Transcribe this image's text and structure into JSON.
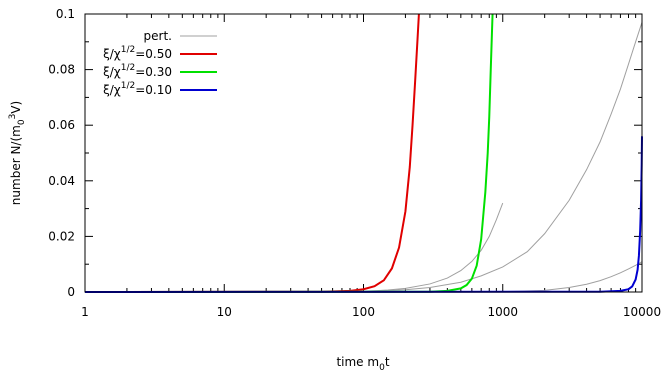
{
  "chart_data": {
    "type": "line",
    "xlabel": "time m₀t",
    "xlabel_parts": {
      "main": "time m",
      "sub": "0",
      "tail": "t"
    },
    "ylabel_parts": {
      "main": "number N/(m",
      "sub": "0",
      "sup": "3",
      "tail": "V)"
    },
    "x_scale": "log",
    "xlim": [
      1,
      10000
    ],
    "ylim": [
      0,
      0.1
    ],
    "x_ticks": [
      1,
      10,
      100,
      1000,
      10000
    ],
    "x_tick_labels": [
      "1",
      "10",
      "100",
      "1000",
      "10000"
    ],
    "y_ticks": [
      0,
      0.02,
      0.04,
      0.06,
      0.08,
      0.1
    ],
    "y_tick_labels": [
      "0",
      "0.02",
      "0.04",
      "0.06",
      "0.08",
      "0.1"
    ],
    "legend_position": "top-left",
    "series": [
      {
        "name": "pert.",
        "color": "#a0a0a0",
        "curves": [
          [
            [
              1,
              0
            ],
            [
              100,
              0.0002
            ],
            [
              200,
              0.0008
            ],
            [
              300,
              0.0016
            ],
            [
              500,
              0.0035
            ],
            [
              700,
              0.0058
            ],
            [
              1000,
              0.009
            ],
            [
              1500,
              0.0145
            ],
            [
              2000,
              0.021
            ],
            [
              3000,
              0.033
            ],
            [
              4000,
              0.044
            ],
            [
              5000,
              0.054
            ],
            [
              6000,
              0.064
            ],
            [
              7000,
              0.073
            ],
            [
              8000,
              0.082
            ],
            [
              9000,
              0.09
            ],
            [
              10000,
              0.097
            ]
          ],
          [
            [
              1,
              0
            ],
            [
              1000,
              0.0001
            ],
            [
              2000,
              0.0006
            ],
            [
              3000,
              0.0016
            ],
            [
              4000,
              0.0028
            ],
            [
              5000,
              0.0041
            ],
            [
              6000,
              0.0055
            ],
            [
              7000,
              0.0069
            ],
            [
              8000,
              0.0083
            ],
            [
              9000,
              0.0096
            ],
            [
              10000,
              0.0109
            ]
          ],
          [
            [
              1,
              0
            ],
            [
              50,
              0.0001
            ],
            [
              100,
              0.0003
            ],
            [
              150,
              0.0007
            ],
            [
              200,
              0.0013
            ],
            [
              300,
              0.0029
            ],
            [
              400,
              0.005
            ],
            [
              500,
              0.0077
            ],
            [
              600,
              0.011
            ],
            [
              700,
              0.015
            ],
            [
              800,
              0.02
            ],
            [
              900,
              0.026
            ],
            [
              1000,
              0.032
            ]
          ]
        ]
      },
      {
        "name": "ξ/χ^{1/2}=0.50",
        "label": {
          "main": "ξ/χ",
          "sup": "1/2",
          "tail": "=0.50"
        },
        "color": "#e00000",
        "points": [
          [
            1,
            0
          ],
          [
            50,
            0.0001
          ],
          [
            80,
            0.0004
          ],
          [
            100,
            0.001
          ],
          [
            120,
            0.0021
          ],
          [
            140,
            0.0042
          ],
          [
            160,
            0.0085
          ],
          [
            180,
            0.016
          ],
          [
            200,
            0.029
          ],
          [
            215,
            0.045
          ],
          [
            225,
            0.06
          ],
          [
            235,
            0.076
          ],
          [
            245,
            0.092
          ],
          [
            250,
            0.1
          ]
        ]
      },
      {
        "name": "ξ/χ^{1/2}=0.30",
        "label": {
          "main": "ξ/χ",
          "sup": "1/2",
          "tail": "=0.30"
        },
        "color": "#00e000",
        "points": [
          [
            1,
            0
          ],
          [
            300,
            0.0001
          ],
          [
            400,
            0.0004
          ],
          [
            500,
            0.0013
          ],
          [
            550,
            0.0025
          ],
          [
            600,
            0.0048
          ],
          [
            650,
            0.0095
          ],
          [
            700,
            0.019
          ],
          [
            750,
            0.036
          ],
          [
            780,
            0.05
          ],
          [
            800,
            0.063
          ],
          [
            820,
            0.08
          ],
          [
            835,
            0.092
          ],
          [
            845,
            0.1
          ]
        ]
      },
      {
        "name": "ξ/χ^{1/2}=0.10",
        "label": {
          "main": "ξ/χ",
          "sup": "1/2",
          "tail": "=0.10"
        },
        "color": "#0000d0",
        "points": [
          [
            1,
            0
          ],
          [
            5000,
            0.0001
          ],
          [
            7000,
            0.0004
          ],
          [
            8000,
            0.001
          ],
          [
            8500,
            0.002
          ],
          [
            9000,
            0.0045
          ],
          [
            9300,
            0.008
          ],
          [
            9500,
            0.013
          ],
          [
            9700,
            0.022
          ],
          [
            9850,
            0.033
          ],
          [
            9950,
            0.046
          ],
          [
            10000,
            0.056
          ]
        ]
      }
    ]
  }
}
